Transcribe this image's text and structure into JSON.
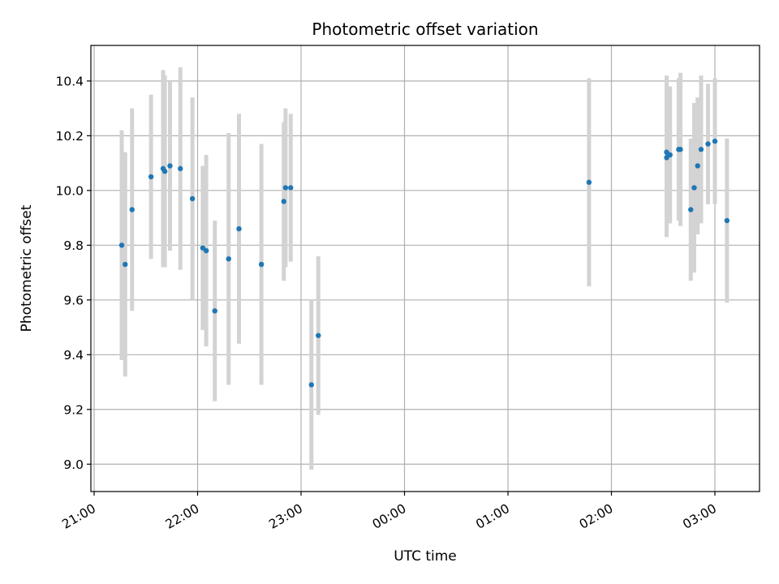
{
  "chart_data": {
    "type": "scatter",
    "title": "Photometric offset variation",
    "xlabel": "UTC time",
    "ylabel": "Photometric offset",
    "x_tick_labels": [
      "21:00",
      "22:00",
      "23:00",
      "00:00",
      "01:00",
      "02:00",
      "03:00"
    ],
    "y_tick_labels": [
      "9.0",
      "9.2",
      "9.4",
      "9.6",
      "9.8",
      "10.0",
      "10.2",
      "10.4"
    ],
    "y_ticks": [
      9.0,
      9.2,
      9.4,
      9.6,
      9.8,
      10.0,
      10.2,
      10.4
    ],
    "xlim": [
      "20:58",
      "03:25"
    ],
    "ylim": [
      8.9,
      10.53
    ],
    "grid": true,
    "colors": {
      "points": "#1f77b4",
      "errorbars": "#d3d3d3",
      "grid": "#b0b0b0"
    },
    "points": [
      {
        "x": "21:16",
        "y": 9.8,
        "err": 0.42
      },
      {
        "x": "21:18",
        "y": 9.73,
        "err": 0.41
      },
      {
        "x": "21:22",
        "y": 9.93,
        "err": 0.37
      },
      {
        "x": "21:33",
        "y": 10.05,
        "err": 0.3
      },
      {
        "x": "21:40",
        "y": 10.08,
        "err": 0.36
      },
      {
        "x": "21:41",
        "y": 10.07,
        "err": 0.35
      },
      {
        "x": "21:44",
        "y": 10.09,
        "err": 0.31
      },
      {
        "x": "21:50",
        "y": 10.08,
        "err": 0.37
      },
      {
        "x": "21:57",
        "y": 9.97,
        "err": 0.37
      },
      {
        "x": "22:03",
        "y": 9.79,
        "err": 0.3
      },
      {
        "x": "22:05",
        "y": 9.78,
        "err": 0.35
      },
      {
        "x": "22:10",
        "y": 9.56,
        "err": 0.33
      },
      {
        "x": "22:18",
        "y": 9.75,
        "err": 0.46
      },
      {
        "x": "22:24",
        "y": 9.86,
        "err": 0.42
      },
      {
        "x": "22:37",
        "y": 9.73,
        "err": 0.44
      },
      {
        "x": "22:50",
        "y": 9.96,
        "err": 0.29
      },
      {
        "x": "22:51",
        "y": 10.01,
        "err": 0.29
      },
      {
        "x": "22:54",
        "y": 10.01,
        "err": 0.27
      },
      {
        "x": "23:06",
        "y": 9.29,
        "err": 0.31
      },
      {
        "x": "23:10",
        "y": 9.47,
        "err": 0.29
      },
      {
        "x": "01:47",
        "y": 10.03,
        "err": 0.38
      },
      {
        "x": "02:32",
        "y": 10.14,
        "err": 0.28
      },
      {
        "x": "02:32",
        "y": 10.12,
        "err": 0.29
      },
      {
        "x": "02:33",
        "y": 10.13,
        "err": 0.25
      },
      {
        "x": "02:34",
        "y": 10.13,
        "err": 0.25
      },
      {
        "x": "02:39",
        "y": 10.15,
        "err": 0.26
      },
      {
        "x": "02:40",
        "y": 10.15,
        "err": 0.28
      },
      {
        "x": "02:46",
        "y": 9.93,
        "err": 0.26
      },
      {
        "x": "02:48",
        "y": 10.01,
        "err": 0.31
      },
      {
        "x": "02:50",
        "y": 10.09,
        "err": 0.25
      },
      {
        "x": "02:52",
        "y": 10.15,
        "err": 0.27
      },
      {
        "x": "02:56",
        "y": 10.17,
        "err": 0.22
      },
      {
        "x": "03:00",
        "y": 10.18,
        "err": 0.23
      },
      {
        "x": "03:07",
        "y": 9.89,
        "err": 0.3
      }
    ]
  }
}
